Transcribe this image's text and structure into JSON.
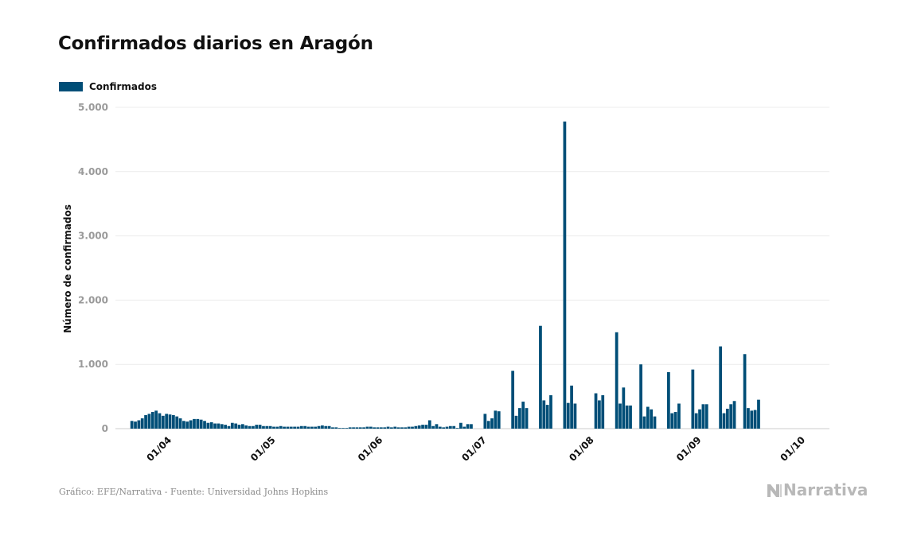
{
  "title": "Confirmados diarios en Aragón",
  "footer": {
    "source": "Gráfico: EFE/Narrativa - Fuente: Universidad Johns Hopkins",
    "brand": "Narrativa"
  },
  "chart_data": {
    "type": "bar",
    "title": "Confirmados diarios en Aragón",
    "xlabel": "",
    "ylabel": "Número de confirmados",
    "ylim": [
      0,
      5000
    ],
    "y_ticks": [
      0,
      1000,
      2000,
      3000,
      4000,
      5000
    ],
    "y_tick_labels": [
      "0",
      "1.000",
      "2.000",
      "3.000",
      "4.000",
      "5.000"
    ],
    "x_tick_labels": [
      "01/04",
      "01/05",
      "01/06",
      "01/07",
      "01/08",
      "01/09",
      "01/10"
    ],
    "x_tick_dates": [
      "2020-04-01",
      "2020-05-01",
      "2020-06-01",
      "2020-07-01",
      "2020-08-01",
      "2020-09-01",
      "2020-10-01"
    ],
    "grid": true,
    "legend_position": "top-left",
    "bar_color": "#004e77",
    "series": [
      {
        "name": "Confirmados",
        "start_date": "2020-03-20",
        "values": [
          120,
          110,
          130,
          160,
          210,
          230,
          260,
          280,
          240,
          200,
          230,
          220,
          210,
          190,
          160,
          120,
          110,
          130,
          150,
          150,
          140,
          120,
          90,
          100,
          80,
          80,
          70,
          60,
          40,
          90,
          80,
          60,
          70,
          50,
          40,
          40,
          60,
          60,
          40,
          40,
          40,
          30,
          30,
          40,
          30,
          30,
          30,
          30,
          30,
          40,
          40,
          30,
          30,
          30,
          40,
          50,
          40,
          40,
          20,
          20,
          10,
          10,
          10,
          20,
          20,
          20,
          20,
          20,
          30,
          30,
          20,
          20,
          20,
          20,
          30,
          20,
          30,
          20,
          20,
          20,
          30,
          30,
          40,
          50,
          60,
          60,
          130,
          40,
          70,
          30,
          20,
          30,
          40,
          40,
          10,
          90,
          30,
          70,
          70,
          0,
          0,
          0,
          230,
          120,
          160,
          280,
          270,
          0,
          0,
          0,
          900,
          200,
          320,
          420,
          320,
          0,
          0,
          0,
          1600,
          440,
          370,
          520,
          0,
          0,
          0,
          4780,
          400,
          670,
          390,
          0,
          0,
          0,
          0,
          0,
          550,
          440,
          520,
          0,
          0,
          0,
          1500,
          390,
          640,
          360,
          360,
          0,
          0,
          1000,
          190,
          340,
          300,
          190,
          0,
          0,
          0,
          880,
          240,
          260,
          390,
          0,
          0,
          0,
          920,
          240,
          300,
          380,
          380,
          0,
          0,
          0,
          1280,
          240,
          310,
          380,
          430,
          0,
          0,
          1160,
          320,
          280,
          290,
          450
        ]
      }
    ]
  }
}
